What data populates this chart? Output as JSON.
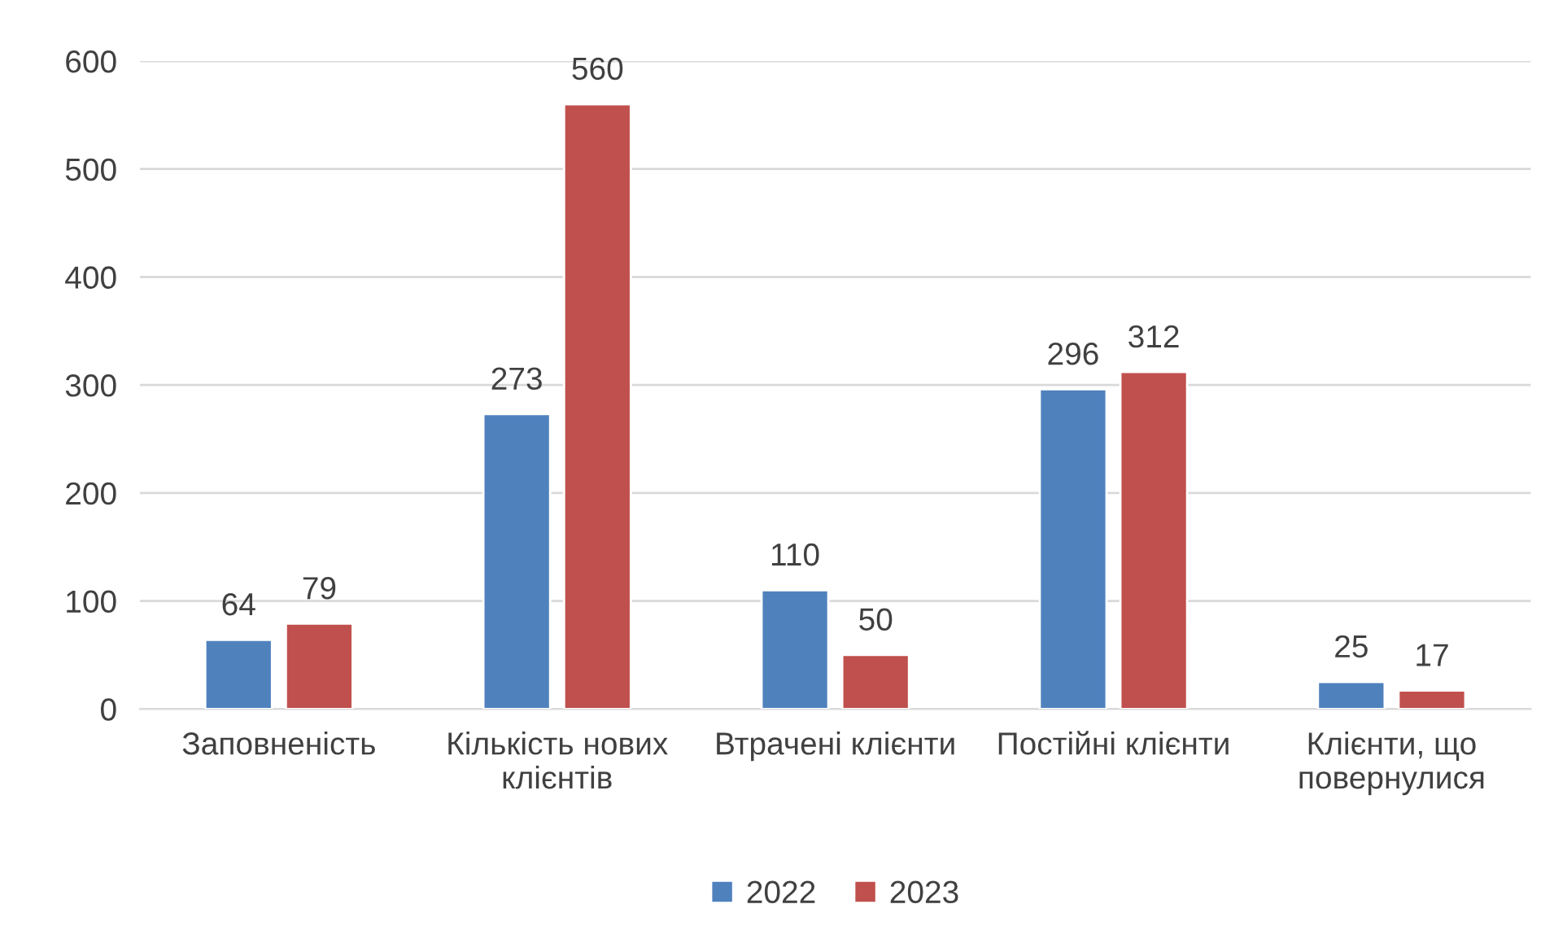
{
  "chart_data": {
    "type": "bar",
    "categories": [
      "Заповненість",
      "Кількість нових\nклієнтів",
      "Втрачені клієнти",
      "Постійні клієнти",
      "Клієнти, що\nповернулися"
    ],
    "series": [
      {
        "name": "2022",
        "color": "#4f81bd",
        "values": [
          64,
          273,
          110,
          296,
          25
        ]
      },
      {
        "name": "2023",
        "color": "#c0504d",
        "values": [
          79,
          560,
          50,
          312,
          17
        ]
      }
    ],
    "ylim": [
      0,
      600
    ],
    "yticks": [
      0,
      100,
      200,
      300,
      400,
      500,
      600
    ],
    "grid": "y",
    "legend": "bottom",
    "data_labels": true
  }
}
